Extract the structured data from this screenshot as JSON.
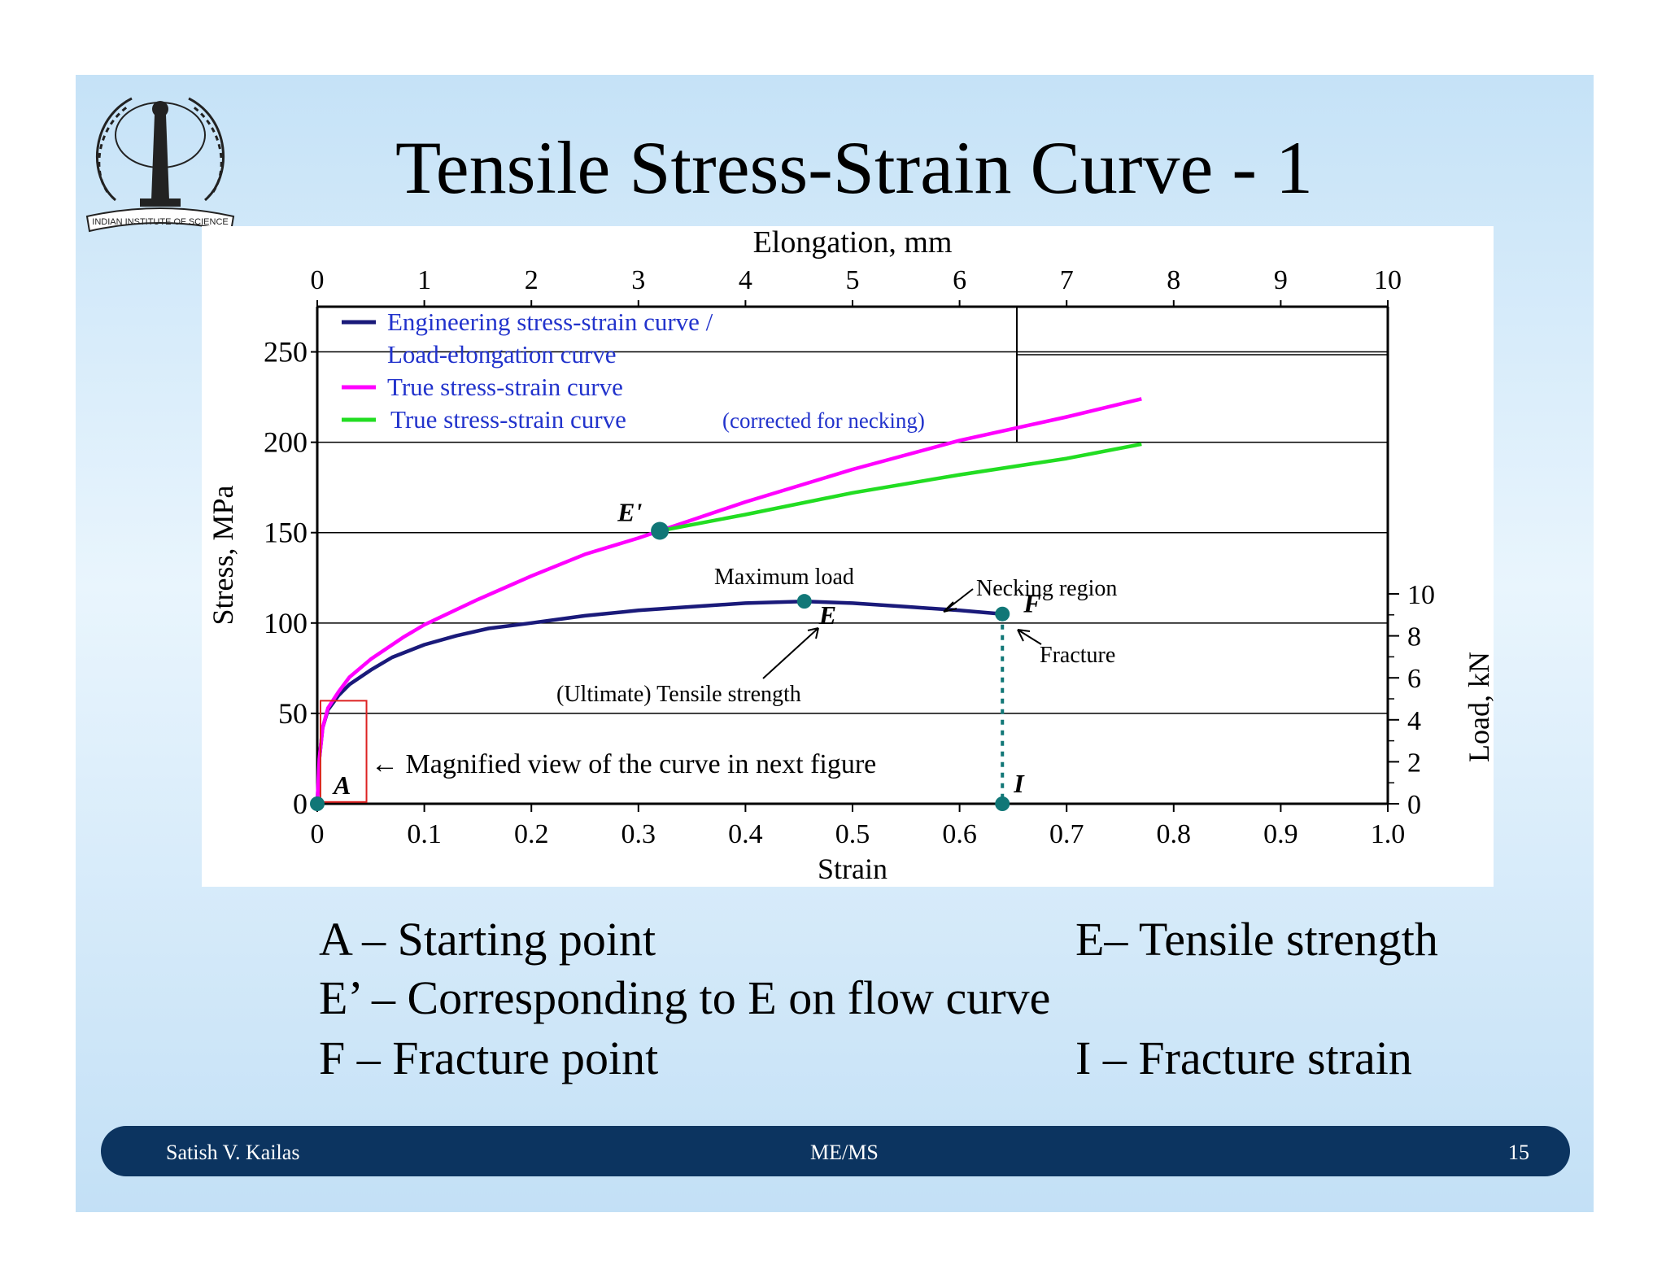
{
  "slide": {
    "title": "Tensile Stress-Strain Curve - 1",
    "logo_text": "INDIAN INSTITUTE OF SCIENCE",
    "definitions": [
      {
        "text": "A – Starting point"
      },
      {
        "text": "E– Tensile strength"
      },
      {
        "text": "E’ – Corresponding to E on flow curve"
      },
      {
        "text": "F – Fracture point"
      },
      {
        "text": "I – Fracture strain"
      }
    ],
    "footer": {
      "author": "Satish V. Kailas",
      "course": "ME/MS",
      "page": "15"
    }
  },
  "chart_data": {
    "type": "line",
    "xlabel": "Strain",
    "ylabel": "Stress, MPa",
    "x2label": "Elongation, mm",
    "y2label": "Load, kN",
    "xlim": [
      0,
      1.0
    ],
    "ylim": [
      0,
      275
    ],
    "x2lim": [
      0,
      10
    ],
    "y2lim": [
      0,
      10
    ],
    "x_ticks": [
      "0",
      "0.1",
      "0.2",
      "0.3",
      "0.4",
      "0.5",
      "0.6",
      "0.7",
      "0.8",
      "0.9",
      "1.0"
    ],
    "y_ticks": [
      "0",
      "50",
      "100",
      "150",
      "200",
      "250"
    ],
    "x2_ticks": [
      "0",
      "1",
      "2",
      "3",
      "4",
      "5",
      "6",
      "7",
      "8",
      "9",
      "10"
    ],
    "y2_ticks": [
      "0",
      "2",
      "4",
      "6",
      "8",
      "10"
    ],
    "grid": "horizontal",
    "legend_position": "top-left",
    "legend": [
      {
        "label": "Engineering stress-strain curve /",
        "label2": "Load-elongation curve",
        "color": "#1a1a7a"
      },
      {
        "label": "True stress-strain curve",
        "color": "#ff00ff"
      },
      {
        "label": "True stress-strain curve",
        "suffix": "(corrected for necking)",
        "color": "#22dd22"
      }
    ],
    "series": [
      {
        "key": "engineering",
        "color": "#1a1a7a",
        "x": [
          0.0,
          0.002,
          0.005,
          0.01,
          0.02,
          0.03,
          0.05,
          0.07,
          0.1,
          0.13,
          0.16,
          0.2,
          0.25,
          0.3,
          0.35,
          0.4,
          0.455,
          0.5,
          0.55,
          0.6,
          0.64
        ],
        "y": [
          0,
          25,
          42,
          52,
          60,
          66,
          74,
          81,
          88,
          93,
          97,
          100,
          104,
          107,
          109,
          111,
          112,
          111,
          109,
          107,
          105
        ]
      },
      {
        "key": "true",
        "color": "#ff00ff",
        "x": [
          0.0,
          0.002,
          0.005,
          0.01,
          0.02,
          0.03,
          0.05,
          0.08,
          0.1,
          0.15,
          0.2,
          0.25,
          0.3,
          0.32,
          0.4,
          0.5,
          0.6,
          0.7,
          0.77
        ],
        "y": [
          0,
          25,
          42,
          53,
          62,
          70,
          80,
          92,
          99,
          113,
          126,
          138,
          147,
          151,
          167,
          185,
          201,
          214,
          224
        ]
      },
      {
        "key": "corrected",
        "color": "#22dd22",
        "x": [
          0.32,
          0.4,
          0.5,
          0.6,
          0.7,
          0.77
        ],
        "y": [
          151,
          160,
          172,
          182,
          191,
          199
        ]
      }
    ],
    "points": [
      {
        "label": "A",
        "x": 0.0,
        "y": 0
      },
      {
        "label": "E'",
        "x": 0.32,
        "y": 151
      },
      {
        "label": "E",
        "x": 0.455,
        "y": 112
      },
      {
        "label": "F",
        "x": 0.64,
        "y": 105
      },
      {
        "label": "I",
        "x": 0.64,
        "y": 0
      }
    ],
    "annotations": {
      "max_load": "Maximum load",
      "necking": "Necking region",
      "fracture": "Fracture",
      "uts": "(Ultimate) Tensile strength",
      "magnified": "← Magnified view of the curve in next figure"
    }
  }
}
